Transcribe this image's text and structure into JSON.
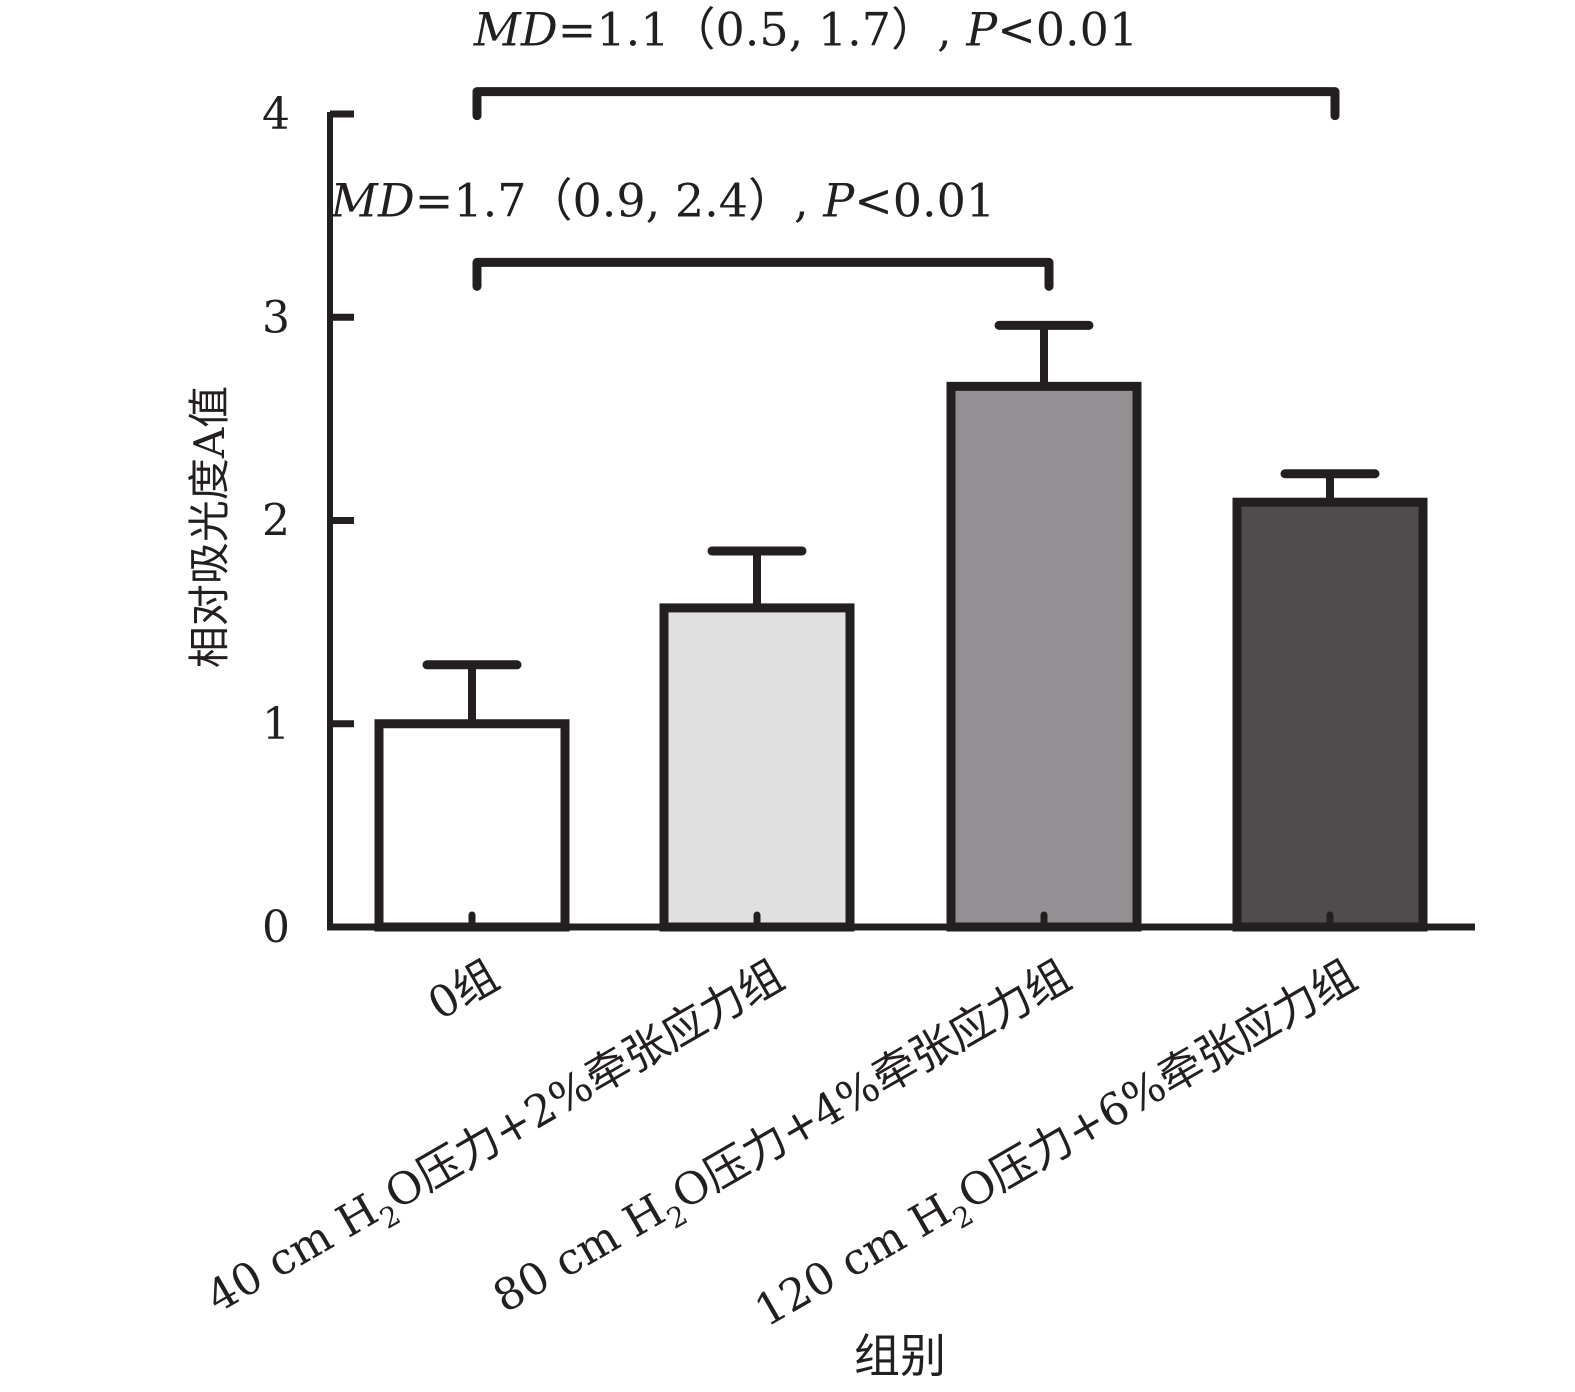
{
  "chart_data": {
    "type": "bar",
    "xlabel": "组别",
    "ylabel": "相对吸光度A值",
    "ylim": [
      0,
      4
    ],
    "yticks": [
      {
        "value": 0,
        "label": "0"
      },
      {
        "value": 1,
        "label": "1"
      },
      {
        "value": 2,
        "label": "2"
      },
      {
        "value": 3,
        "label": "3"
      },
      {
        "value": 4,
        "label": "4"
      }
    ],
    "categories": [
      {
        "text": "0组"
      },
      {
        "pre": "40 cm H",
        "sub": "2",
        "post": "O压力+2%牵张应力组"
      },
      {
        "pre": "80 cm H",
        "sub": "2",
        "post": "O压力+4%牵张应力组"
      },
      {
        "pre": "120 cm H",
        "sub": "2",
        "post": "O压力+6%牵张应力组"
      }
    ],
    "values": [
      1.0,
      1.57,
      2.66,
      2.09
    ],
    "errors": [
      0.29,
      0.28,
      0.3,
      0.14
    ],
    "colors": [
      "#ffffff",
      "#e0e0e0",
      "#929092",
      "#504b4d"
    ],
    "edge_color": "#231f20",
    "annotations": [
      {
        "from": 0,
        "to": 2,
        "level": 3.27,
        "md": "MD",
        "text": "=1.7（0.9, 2.4）, ",
        "p": "P",
        "ptext": "<0.01"
      },
      {
        "from": 0,
        "to": 3,
        "level": 4.11,
        "md": "MD",
        "text": "=1.1（0.5, 1.7）, ",
        "p": "P",
        "ptext": "<0.01"
      }
    ]
  }
}
